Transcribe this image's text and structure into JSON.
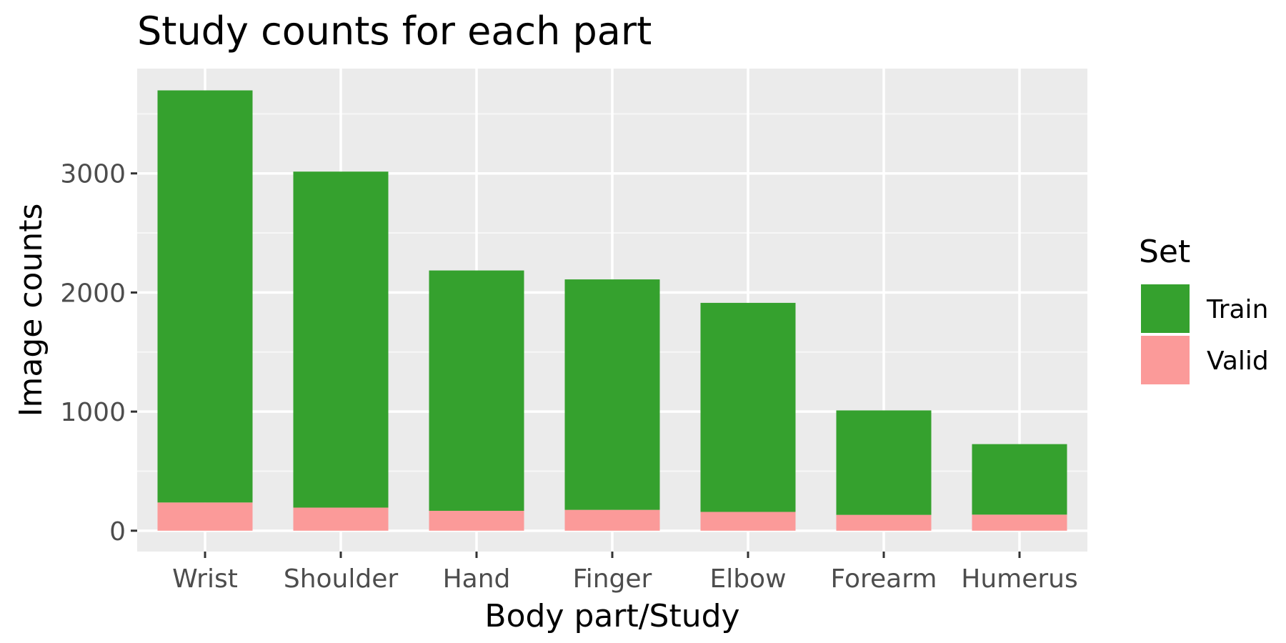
{
  "chart_data": {
    "type": "bar",
    "stacked": true,
    "title": "Study counts for each part",
    "xlabel": "Body part/Study",
    "ylabel": "Image counts",
    "categories": [
      "Wrist",
      "Shoulder",
      "Hand",
      "Finger",
      "Elbow",
      "Forearm",
      "Humerus"
    ],
    "series": [
      {
        "name": "Valid",
        "values": [
          237,
          194,
          167,
          175,
          158,
          133,
          135
        ]
      },
      {
        "name": "Train",
        "values": [
          3460,
          2821,
          2018,
          1935,
          1755,
          877,
          592
        ]
      }
    ],
    "totals": [
      3697,
      3015,
      2185,
      2110,
      1913,
      1010,
      727
    ],
    "ylim": [
      -175,
      3880
    ],
    "yticks": [
      0,
      1000,
      2000,
      3000
    ],
    "grid": true,
    "legend": {
      "title": "Set",
      "position": "right",
      "entries": [
        "Train",
        "Valid"
      ]
    },
    "colors": {
      "Train": "#35a12e",
      "Valid": "#fb9a99",
      "panel_background": "#ebebeb",
      "grid_major": "#ffffff",
      "grid_minor": "#f7f7f7"
    }
  }
}
